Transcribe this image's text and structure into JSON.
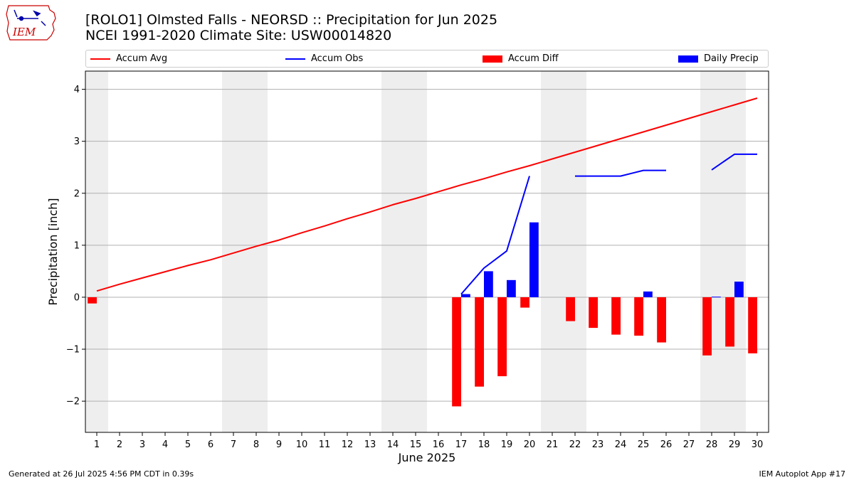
{
  "header": {
    "title_line1": "[ROLO1] Olmsted Falls - NEORSD :: Precipitation for Jun 2025",
    "title_line2": "NCEI 1991-2020 Climate Site: USW00014820"
  },
  "logo": {
    "text": "IEM",
    "brand_color": "#cc0000",
    "icon": "iowa-state-outline-weather-station-logo"
  },
  "legend": {
    "items": [
      {
        "label": "Accum Avg",
        "kind": "line",
        "color": "#ff0000"
      },
      {
        "label": "Accum Obs",
        "kind": "line",
        "color": "#0000ff"
      },
      {
        "label": "Accum Diff",
        "kind": "box",
        "color": "#ff0000"
      },
      {
        "label": "Daily Precip",
        "kind": "box",
        "color": "#0000ff"
      }
    ]
  },
  "footer": {
    "left": "Generated at 26 Jul 2025 4:56 PM CDT in 0.39s",
    "right": "IEM Autoplot App #17"
  },
  "chart_data": {
    "type": "bar",
    "xlabel": "June 2025",
    "ylabel": "Precipitation [inch]",
    "x": [
      1,
      2,
      3,
      4,
      5,
      6,
      7,
      8,
      9,
      10,
      11,
      12,
      13,
      14,
      15,
      16,
      17,
      18,
      19,
      20,
      21,
      22,
      23,
      24,
      25,
      26,
      27,
      28,
      29,
      30
    ],
    "xlim": [
      0.5,
      30.5
    ],
    "ylim": [
      -2.6,
      4.35
    ],
    "yticks": [
      -2,
      -1,
      0,
      1,
      2,
      3,
      4
    ],
    "ytick_labels": [
      "−2",
      "−1",
      "0",
      "1",
      "2",
      "3",
      "4"
    ],
    "grid": "y",
    "weekend_shading": [
      [
        0.5,
        1.5
      ],
      [
        6.5,
        8.5
      ],
      [
        13.5,
        15.5
      ],
      [
        20.5,
        22.5
      ],
      [
        27.5,
        29.5
      ]
    ],
    "shading_color": "#eeeeee",
    "series": [
      {
        "name": "Accum Avg",
        "kind": "line",
        "color": "#ff0000",
        "values": [
          0.12,
          0.25,
          0.37,
          0.49,
          0.61,
          0.72,
          0.85,
          0.98,
          1.1,
          1.24,
          1.37,
          1.51,
          1.64,
          1.78,
          1.9,
          2.03,
          2.16,
          2.28,
          2.41,
          2.53,
          2.66,
          2.79,
          2.92,
          3.05,
          3.18,
          3.31,
          3.44,
          3.57,
          3.7,
          3.83
        ]
      },
      {
        "name": "Accum Obs",
        "kind": "line",
        "color": "#0000ff",
        "values": [
          null,
          null,
          null,
          null,
          null,
          null,
          null,
          null,
          null,
          null,
          null,
          null,
          null,
          null,
          null,
          null,
          0.06,
          0.56,
          0.89,
          2.33,
          null,
          2.33,
          2.33,
          2.33,
          2.44,
          2.44,
          null,
          2.45,
          2.75,
          2.75
        ]
      },
      {
        "name": "Accum Diff",
        "kind": "bar",
        "color": "#ff0000",
        "offset": -0.2,
        "values": [
          -0.12,
          null,
          null,
          null,
          null,
          null,
          null,
          null,
          null,
          null,
          null,
          null,
          null,
          null,
          null,
          null,
          -2.1,
          -1.72,
          -1.52,
          -0.2,
          null,
          -0.46,
          -0.59,
          -0.72,
          -0.74,
          -0.87,
          null,
          -1.12,
          -0.95,
          -1.08
        ]
      },
      {
        "name": "Daily Precip",
        "kind": "bar",
        "color": "#0000ff",
        "offset": 0.2,
        "values": [
          null,
          null,
          null,
          null,
          null,
          null,
          null,
          null,
          null,
          null,
          null,
          null,
          null,
          null,
          null,
          null,
          0.06,
          0.5,
          0.33,
          1.44,
          null,
          null,
          null,
          null,
          0.11,
          null,
          null,
          0.01,
          0.3,
          null
        ]
      }
    ]
  }
}
